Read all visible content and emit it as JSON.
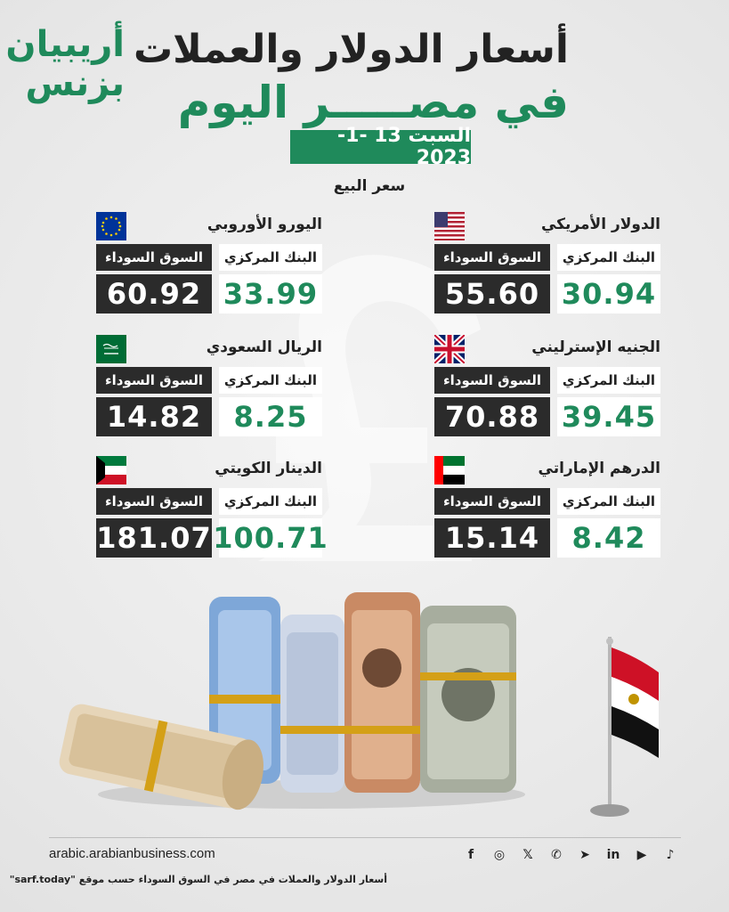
{
  "logo": {
    "line1": "أريبيان",
    "line2": "بزنس"
  },
  "title": {
    "line1": "أسعار الدولار والعملات",
    "line2": "في مصـــــر اليوم"
  },
  "date": "السبت 13 -1-2023",
  "sell_label": "سعر البيع",
  "headers": {
    "central_bank": "البنك المركزي",
    "black_market": "السوق السوداء"
  },
  "currencies": [
    {
      "name": "الدولار الأمريكي",
      "flag": "us-flag-icon",
      "central": "30.94",
      "black": "55.60"
    },
    {
      "name": "اليورو الأوروبي",
      "flag": "eu-flag-icon",
      "central": "33.99",
      "black": "60.92"
    },
    {
      "name": "الجنيه الإسترليني",
      "flag": "uk-flag-icon",
      "central": "39.45",
      "black": "70.88"
    },
    {
      "name": "الريال السعودي",
      "flag": "saudi-flag-icon",
      "central": "8.25",
      "black": "14.82"
    },
    {
      "name": "الدرهم الإماراتي",
      "flag": "uae-flag-icon",
      "central": "8.42",
      "black": "15.14"
    },
    {
      "name": "الدينار الكويتي",
      "flag": "kuwait-flag-icon",
      "central": "100.71",
      "black": "181.07"
    }
  ],
  "footer": {
    "site": "arabic.arabianbusiness.com",
    "socials": [
      "facebook-icon",
      "instagram-icon",
      "x-icon",
      "whatsapp-icon",
      "telegram-icon",
      "linkedin-icon",
      "youtube-icon",
      "tiktok-icon"
    ],
    "social_glyphs": [
      "f",
      "◎",
      "𝕏",
      "✆",
      "➤",
      "in",
      "▶",
      "♪"
    ],
    "source": "أسعار الدولار والعملات في مصر في السوق السوداء حسب موقع \"sarf.today\""
  },
  "colors": {
    "accent": "#1f8a5b",
    "dark": "#2b2b2b"
  }
}
